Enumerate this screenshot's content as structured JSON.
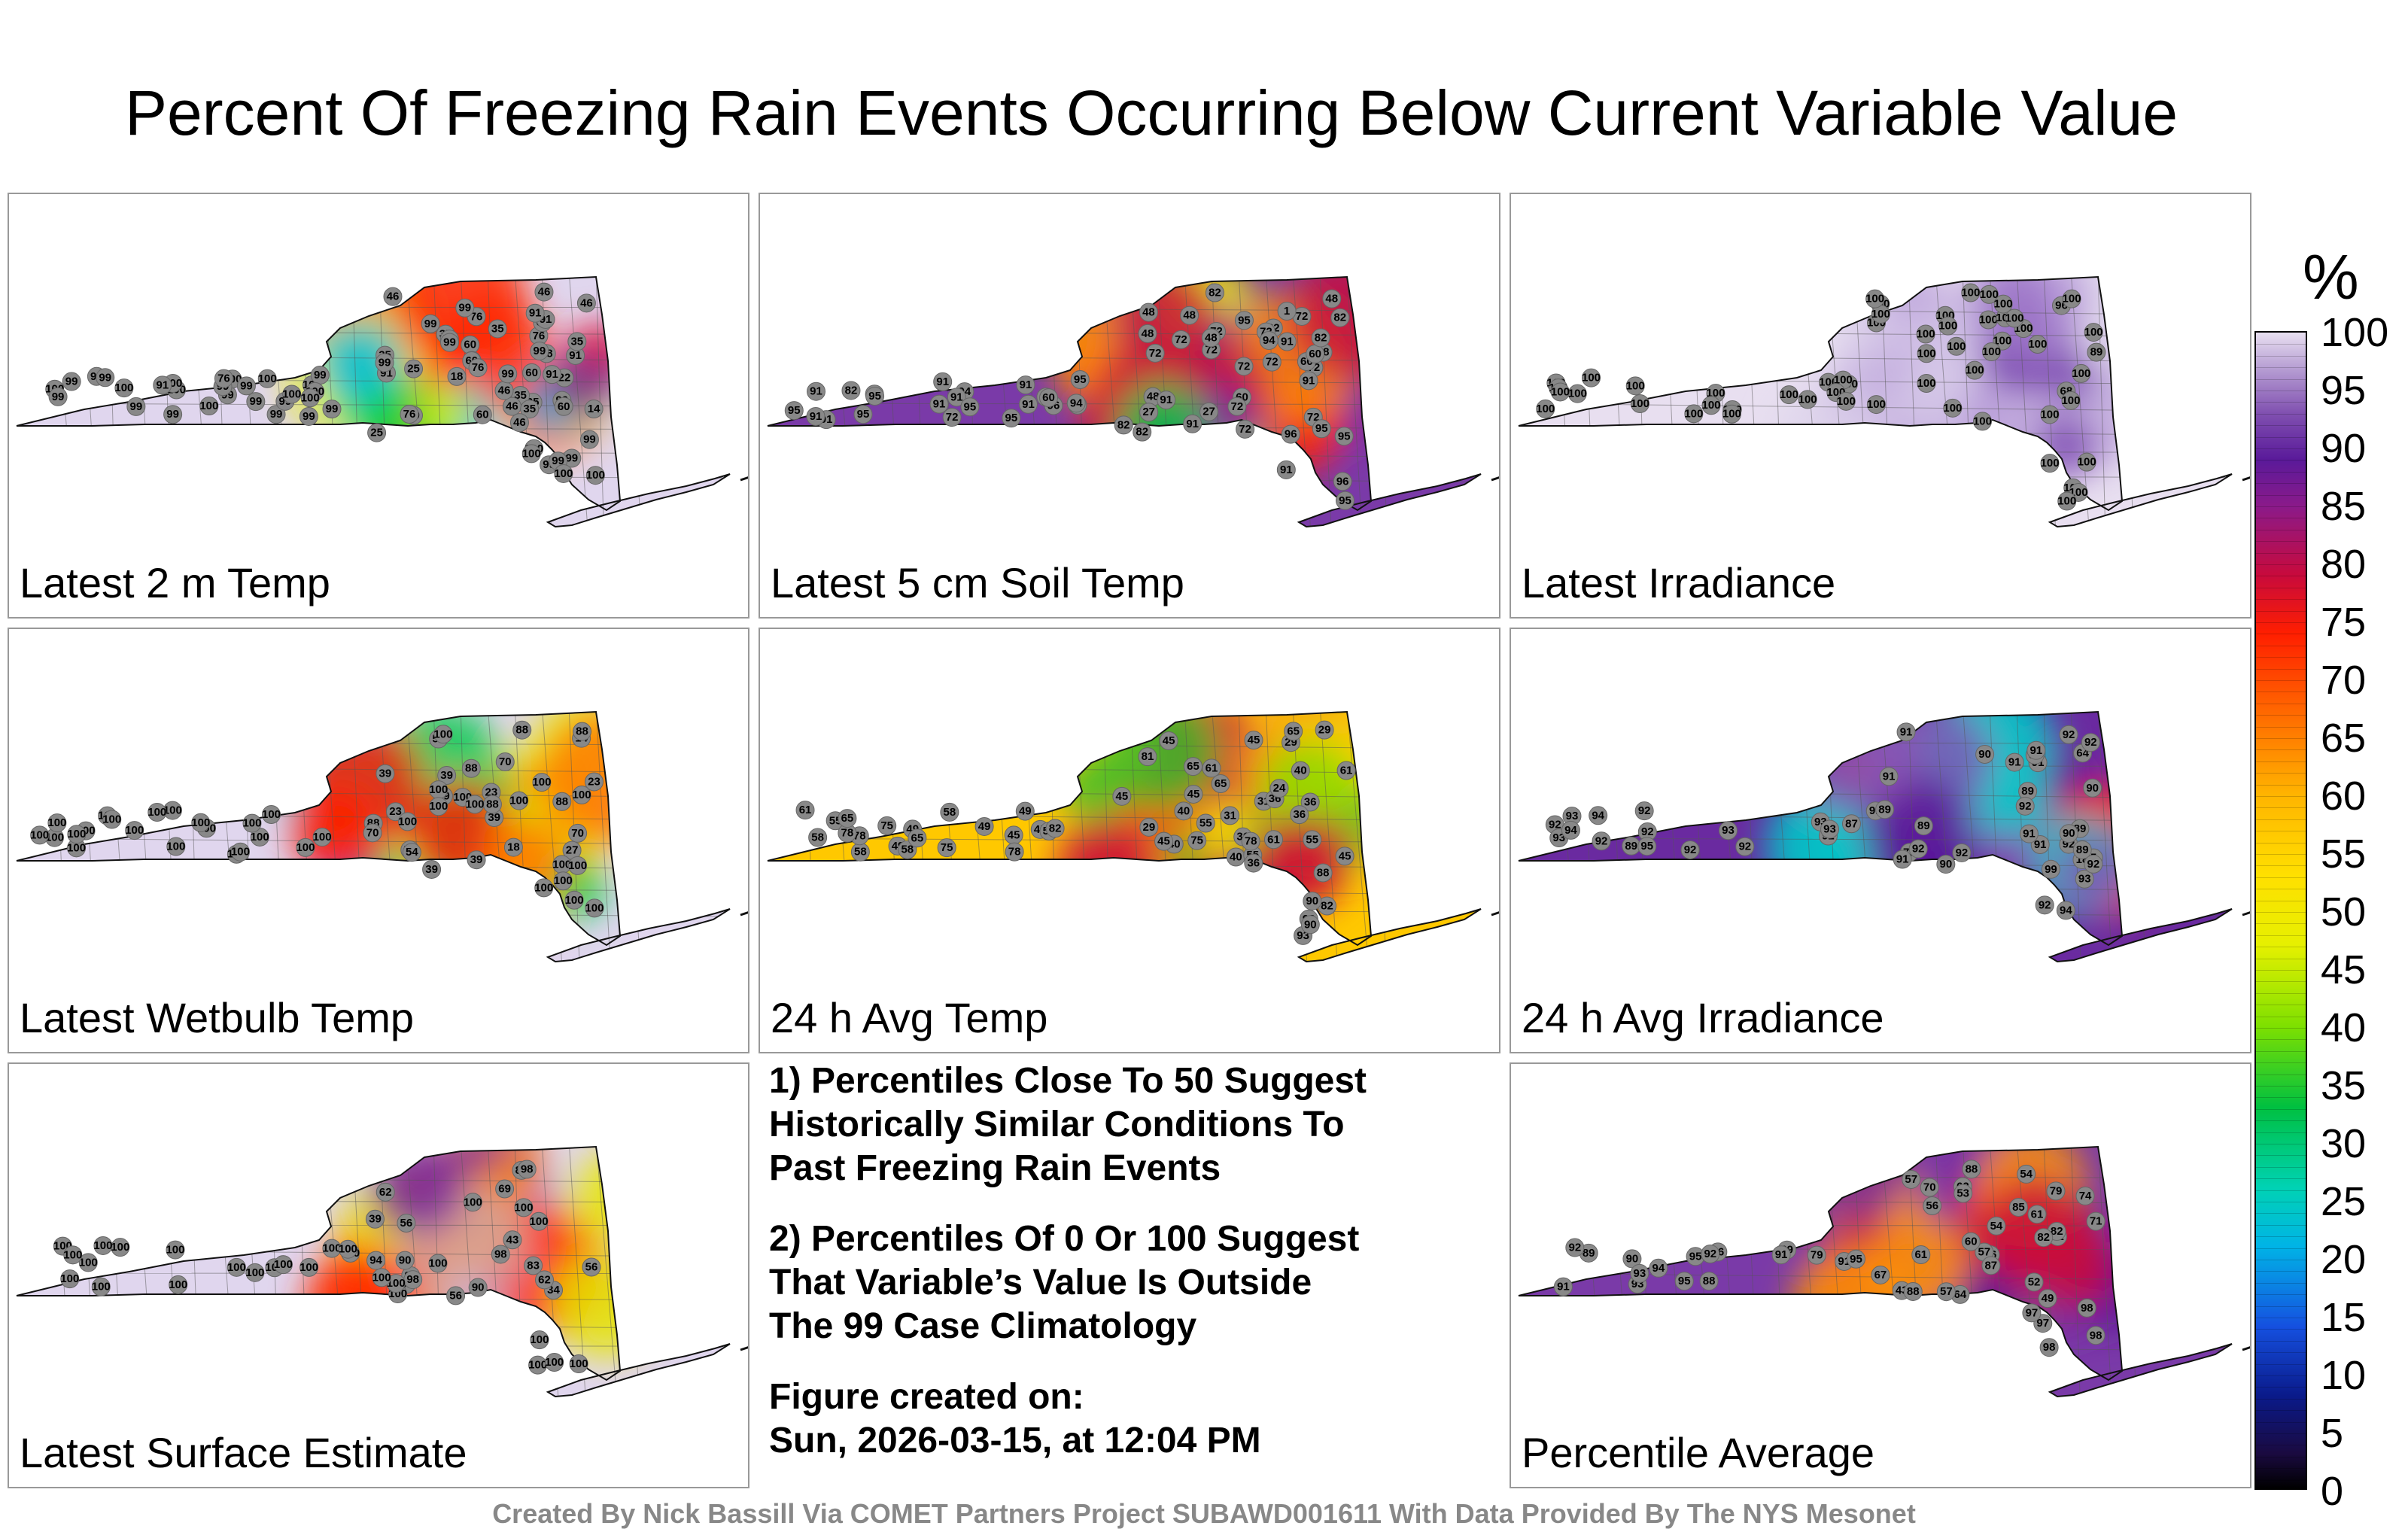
{
  "title": "Percent Of Freezing Rain Events Occurring Below Current Variable Value",
  "panels": [
    {
      "label": "Latest 2 m Temp",
      "palette": "cool",
      "stations": [
        "35",
        "60",
        "35",
        "60",
        "25",
        "76",
        "76",
        "99",
        "18",
        "14",
        "60",
        "25",
        "18",
        "76",
        "60",
        "35",
        "46",
        "46",
        "35",
        "25",
        "91",
        "60",
        "35",
        "46",
        "91",
        "99",
        "60",
        "46",
        "22",
        "35",
        "46",
        "91",
        "91",
        "99",
        "76",
        "60",
        "46",
        "35",
        "99",
        "76",
        "91",
        "99",
        "99",
        "99",
        "99",
        "100",
        "99",
        "100",
        "99",
        "99",
        "99",
        "100",
        "100",
        "100",
        "100",
        "99",
        "99",
        "100",
        "100",
        "100",
        "100",
        "99",
        "99",
        "100",
        "76",
        "99",
        "99",
        "91",
        "99",
        "99",
        "99",
        "99",
        "99",
        "99",
        "99",
        "99",
        "100",
        "100",
        "100",
        "100"
      ]
    },
    {
      "label": "Latest 5 cm Soil Temp",
      "palette": "soil",
      "stations": [
        "72",
        "72",
        "72",
        "48",
        "82",
        "72",
        "60",
        "95",
        "48",
        "27",
        "72",
        "48",
        "82",
        "72",
        "48",
        "91",
        "72",
        "82",
        "48",
        "72",
        "27",
        "60",
        "72",
        "48",
        "72",
        "48",
        "1",
        "91",
        "82",
        "60",
        "72",
        "91",
        "72",
        "82",
        "91",
        "82",
        "94",
        "91",
        "72",
        "82",
        "60",
        "91",
        "96",
        "95",
        "95",
        "94",
        "91",
        "91",
        "91",
        "94",
        "95",
        "95",
        "94",
        "91",
        "91",
        "91",
        "95",
        "95",
        "60",
        "95",
        "91",
        "91",
        "95",
        "96",
        "96",
        "95",
        "95"
      ]
    },
    {
      "label": "Latest Irradiance",
      "palette": "irr",
      "stations": [
        "100",
        "100",
        "100",
        "100",
        "89",
        "100",
        "100",
        "100",
        "68",
        "100",
        "100",
        "100",
        "100",
        "100",
        "96",
        "100",
        "100",
        "100",
        "100",
        "100",
        "100",
        "100",
        "100",
        "100",
        "100",
        "100",
        "100",
        "100",
        "100",
        "100",
        "100",
        "100",
        "100",
        "100",
        "100",
        "100",
        "100",
        "100",
        "100",
        "100",
        "100",
        "100",
        "100",
        "100",
        "100",
        "100",
        "100",
        "100",
        "100",
        "100",
        "100",
        "100",
        "100",
        "100",
        "100",
        "100",
        "100"
      ]
    },
    {
      "label": "Latest Wetbulb Temp",
      "palette": "wet",
      "stations": [
        "39",
        "54",
        "39",
        "70",
        "27",
        "88",
        "23",
        "14",
        "70",
        "54",
        "18",
        "88",
        "39",
        "39",
        "23",
        "54",
        "39",
        "23",
        "88",
        "70",
        "39",
        "88",
        "88",
        "88",
        "100",
        "100",
        "100",
        "100",
        "100",
        "100",
        "100",
        "100",
        "100",
        "100",
        "100",
        "100",
        "100",
        "100",
        "100",
        "100",
        "100",
        "100",
        "100",
        "100",
        "100",
        "100",
        "100",
        "100",
        "100",
        "100",
        "100",
        "100",
        "100",
        "100",
        "100",
        "100",
        "100",
        "100",
        "100",
        "100"
      ]
    },
    {
      "label": "24 h Avg Temp",
      "palette": "avgt",
      "stations": [
        "40",
        "36",
        "61",
        "45",
        "40",
        "36",
        "29",
        "31",
        "75",
        "55",
        "36",
        "29",
        "24",
        "40",
        "40",
        "36",
        "29",
        "45",
        "78",
        "65",
        "65",
        "61",
        "61",
        "55",
        "45",
        "36",
        "45",
        "31",
        "81",
        "65",
        "45",
        "45",
        "55",
        "45",
        "49",
        "58",
        "75",
        "78",
        "45",
        "49",
        "58",
        "55",
        "55",
        "49",
        "58",
        "61",
        "78",
        "78",
        "49",
        "58",
        "65",
        "75",
        "65",
        "82",
        "82",
        "88",
        "90",
        "93",
        "93",
        "90"
      ]
    },
    {
      "label": "24 h Avg Irradiance",
      "palette": "avgi",
      "stations": [
        "91",
        "90",
        "91",
        "89",
        "91",
        "91",
        "89",
        "90",
        "91",
        "5",
        "91",
        "92",
        "18",
        "89",
        "64",
        "92",
        "79",
        "91",
        "91",
        "92",
        "90",
        "89",
        "92",
        "91",
        "92",
        "89",
        "90",
        "92",
        "89",
        "92",
        "93",
        "92",
        "89",
        "87",
        "93",
        "92",
        "92",
        "92",
        "93",
        "93",
        "92",
        "92",
        "93",
        "94",
        "95",
        "94",
        "93",
        "92",
        "92",
        "94",
        "99"
      ]
    },
    {
      "label": "Latest Surface Estimate",
      "palette": "sfc",
      "stations": [
        "56",
        "83",
        "62",
        "100",
        "69",
        "83",
        "90",
        "39",
        "34",
        "56",
        "62",
        "83",
        "56",
        "90",
        "43",
        "90",
        "98",
        "94",
        "98",
        "100",
        "98",
        "100",
        "100",
        "100",
        "100",
        "100",
        "100",
        "100",
        "100",
        "100",
        "100",
        "100",
        "100",
        "100",
        "100",
        "100",
        "100",
        "100",
        "100",
        "100",
        "100",
        "100",
        "100",
        "100",
        "100",
        "100",
        "100"
      ]
    },
    {
      "label": "Percentile Average",
      "palette": "avg",
      "stations": [
        "61",
        "71",
        "62",
        "76",
        "57",
        "79",
        "56",
        "52",
        "54",
        "49",
        "82",
        "74",
        "64",
        "43",
        "57",
        "60",
        "71",
        "67",
        "70",
        "61",
        "53",
        "57",
        "54",
        "82",
        "87",
        "88",
        "88",
        "85",
        "76",
        "69",
        "79",
        "89",
        "92",
        "88",
        "90",
        "91",
        "91",
        "93",
        "91",
        "95",
        "92",
        "94",
        "95",
        "93",
        "95",
        "97",
        "98",
        "98",
        "97",
        "98"
      ]
    }
  ],
  "notes": {
    "note1": "1) Percentiles Close To 50 Suggest\nHistorically Similar Conditions To\nPast Freezing Rain Events",
    "note2": "2) Percentiles Of 0 Or 100 Suggest\nThat Variable’s Value Is Outside\nThe 99 Case Climatology",
    "figure_label": "Figure created on:",
    "figure_date": "Sun, 2026-03-15, at 12:04 PM"
  },
  "colorbar": {
    "unit": "%",
    "ticks": [
      "100",
      "95",
      "90",
      "85",
      "80",
      "75",
      "70",
      "65",
      "60",
      "55",
      "50",
      "45",
      "40",
      "35",
      "30",
      "25",
      "20",
      "15",
      "10",
      "5",
      "0"
    ]
  },
  "credit": "Created By Nick Bassill Via COMET Partners Project SUBAWD001611 With Data Provided By The NYS Mesonet"
}
